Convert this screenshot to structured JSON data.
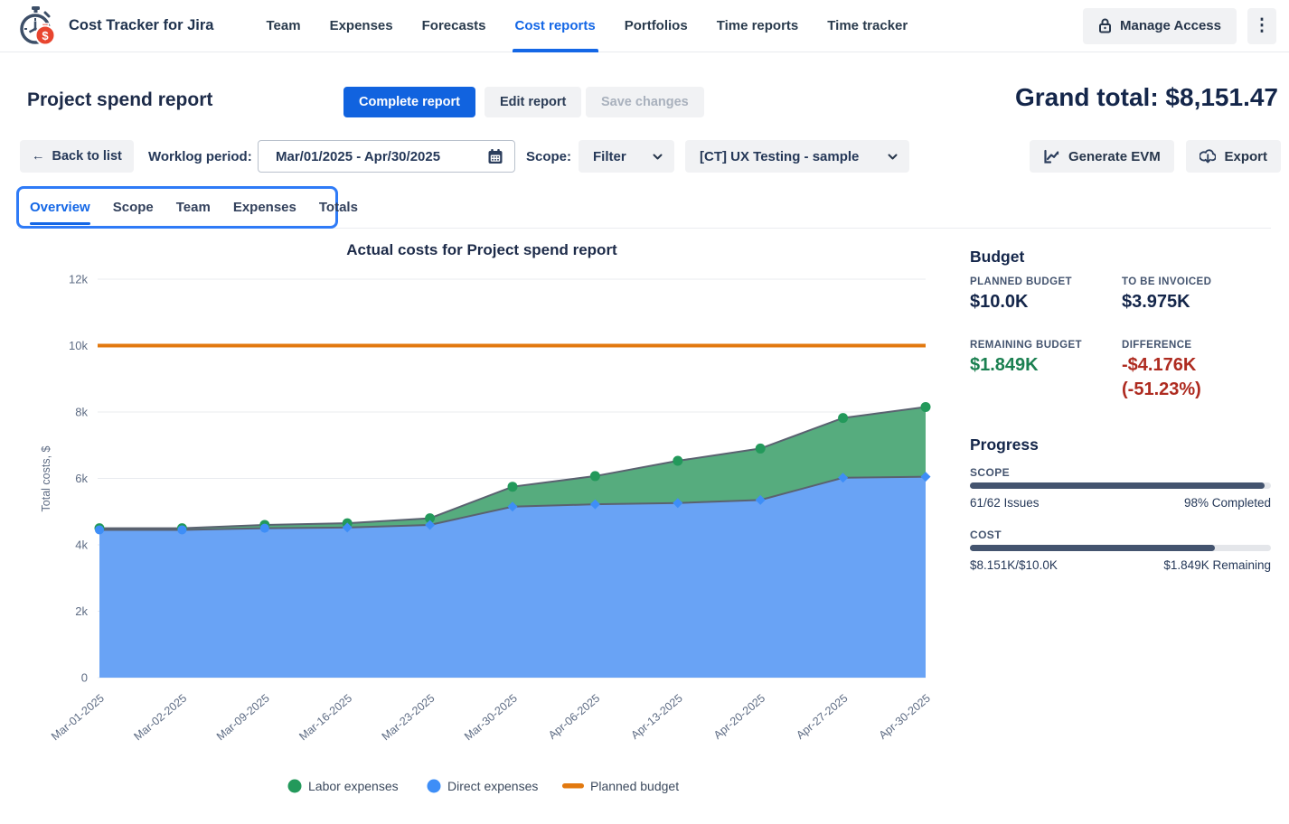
{
  "header": {
    "app_title": "Cost Tracker for Jira",
    "nav": {
      "team": "Team",
      "expenses": "Expenses",
      "forecasts": "Forecasts",
      "cost_reports": "Cost reports",
      "portfolios": "Portfolios",
      "time_reports": "Time reports",
      "time_tracker": "Time tracker"
    },
    "manage_access": "Manage Access"
  },
  "title_row": {
    "page_title": "Project spend report",
    "complete_report": "Complete report",
    "edit_report": "Edit report",
    "save_changes": "Save changes",
    "grand_total": "Grand total: $8,151.47"
  },
  "toolbar": {
    "back_to_list": "Back to list",
    "back_arrow": "←",
    "worklog_period_label": "Worklog period:",
    "worklog_period_value": "Mar/01/2025 - Apr/30/2025",
    "scope_label": "Scope:",
    "scope_filter_value": "Filter",
    "project_selector_value": "[CT] UX Testing - sample",
    "generate_evm": "Generate EVM",
    "export": "Export"
  },
  "tabs": {
    "overview": "Overview",
    "scope": "Scope",
    "team": "Team",
    "expenses": "Expenses",
    "totals": "Totals"
  },
  "chart_data": {
    "type": "area",
    "stacked": true,
    "title": "Actual costs for Project spend report",
    "ylabel": "Total costs, $",
    "ylim": [
      0,
      12000
    ],
    "yticks": [
      "0",
      "2k",
      "4k",
      "6k",
      "8k",
      "10k",
      "12k"
    ],
    "grid": true,
    "legend_position": "bottom",
    "categories": [
      "Mar-01-2025",
      "Mar-02-2025",
      "Mar-09-2025",
      "Mar-16-2025",
      "Mar-23-2025",
      "Mar-30-2025",
      "Apr-06-2025",
      "Apr-13-2025",
      "Apr-20-2025",
      "Apr-27-2025",
      "Apr-30-2025"
    ],
    "series": [
      {
        "name": "Direct expenses",
        "color": "#3E8EF7",
        "area_color": "#69A3F5",
        "values": [
          4450,
          4450,
          4500,
          4520,
          4600,
          5150,
          5220,
          5260,
          5350,
          6020,
          6050
        ]
      },
      {
        "name": "Labor expenses",
        "color": "#23995B",
        "area_color": "#56AC7E",
        "values": [
          50,
          50,
          100,
          130,
          200,
          600,
          850,
          1270,
          1550,
          1800,
          2101
        ]
      }
    ],
    "planned_budget": {
      "label": "Planned budget",
      "value": 10000,
      "color": "#E2790F"
    },
    "line_stroke_color": "#5A6270",
    "grid_color": "#E9EBEF",
    "axis_text_color": "#5E6C84",
    "title_color": "#1D2B49"
  },
  "budget": {
    "heading": "Budget",
    "planned": {
      "label": "PLANNED BUDGET",
      "value": "$10.0K"
    },
    "invoiced": {
      "label": "TO BE INVOICED",
      "value": "$3.975K"
    },
    "remaining": {
      "label": "REMAINING BUDGET",
      "value": "$1.849K",
      "color": "#1B8051"
    },
    "difference": {
      "label": "DIFFERENCE",
      "value": "-$4.176K",
      "percent": "(-51.23%)",
      "color": "#AE2B20"
    }
  },
  "progress": {
    "heading": "Progress",
    "scope": {
      "label": "SCOPE",
      "left": "61/62 Issues",
      "right": "98% Completed",
      "percent": 98
    },
    "cost": {
      "label": "COST",
      "left": "$8.151K/$10.0K",
      "right": "$1.849K Remaining",
      "percent": 81.5
    }
  },
  "colors": {
    "accent_blue": "#1467E6",
    "primary_button": "#1163DF",
    "navy": "#14264A",
    "progress_fill": "#44546F",
    "highlight_box": "#2F7BF7"
  }
}
